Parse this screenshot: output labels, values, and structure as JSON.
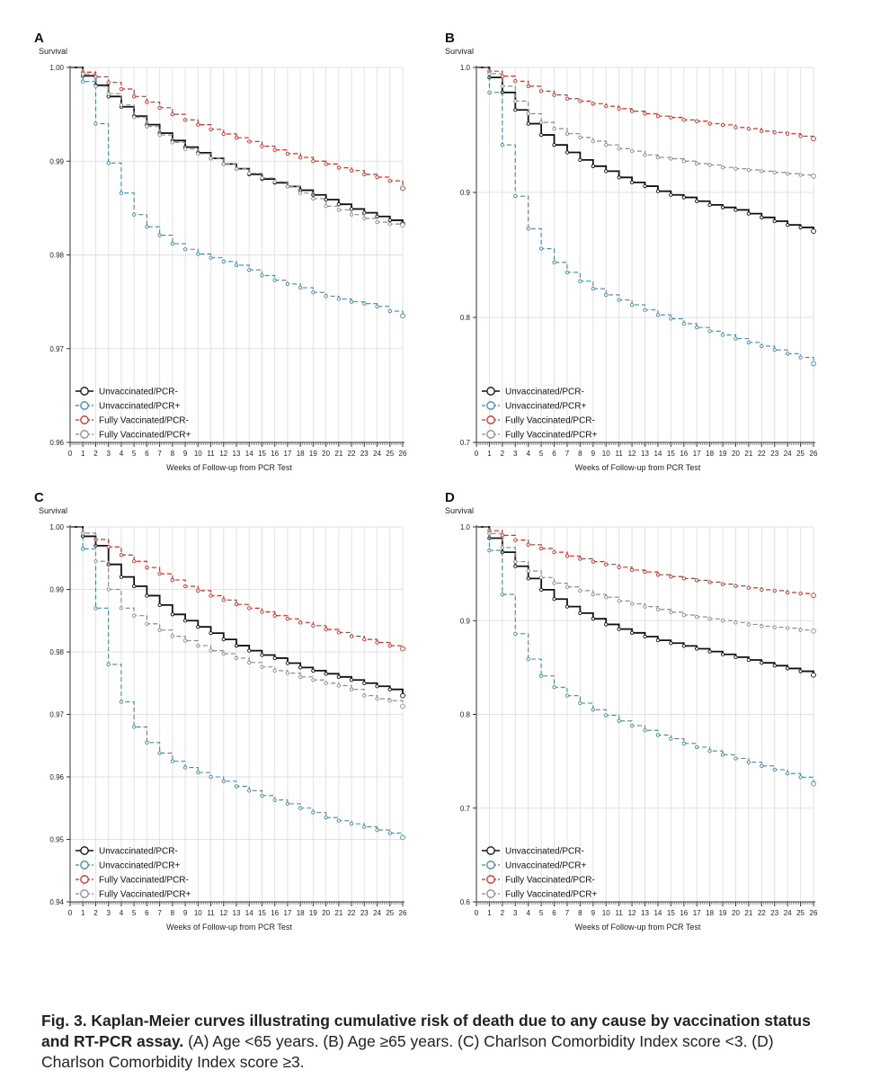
{
  "legend_labels": [
    "Unvaccinated/PCR-",
    "Unvaccinated/PCR+",
    "Fully Vaccinated/PCR-",
    "Fully Vaccinated/PCR+"
  ],
  "series_colors": [
    "#111111",
    "#3d8aa6",
    "#d62a22",
    "#8a8a8a"
  ],
  "caption": {
    "bold_part": "Fig. 3. Kaplan-Meier curves illustrating cumulative risk of death due to any cause by vaccination status and RT-PCR assay.",
    "rest": " (A) Age <65 years. (B) Age ≥65 years. (C) Charlson Comorbidity Index score <3. (D) Charlson Comorbidity Index score ≥3."
  },
  "chart_data": [
    {
      "type": "line",
      "panel": "A",
      "ylabel": "Survival",
      "xlabel": "Weeks of Follow-up from PCR Test",
      "ylim": [
        0.96,
        1.0
      ],
      "xlim": [
        0,
        26
      ],
      "yticks": [
        "1.00",
        "0.99",
        "0.98",
        "0.97",
        "0.96"
      ],
      "ytick_values": [
        1.0,
        0.99,
        0.98,
        0.97,
        0.96
      ],
      "xticks": [
        "0",
        "1",
        "2",
        "3",
        "4",
        "5",
        "6",
        "7",
        "8",
        "9",
        "10",
        "11",
        "12",
        "13",
        "14",
        "15",
        "16",
        "17",
        "18",
        "19",
        "20",
        "21",
        "22",
        "23",
        "24",
        "25",
        "26"
      ],
      "grid": true,
      "legend": "bottom-left",
      "x": [
        0,
        1,
        2,
        3,
        4,
        5,
        6,
        7,
        8,
        9,
        10,
        11,
        12,
        13,
        14,
        15,
        16,
        17,
        18,
        19,
        20,
        21,
        22,
        23,
        24,
        25,
        26
      ],
      "series": [
        {
          "name": "Unvaccinated/PCR-",
          "values": [
            1.0,
            0.9991,
            0.9981,
            0.9969,
            0.9958,
            0.9948,
            0.9939,
            0.993,
            0.9922,
            0.9915,
            0.9909,
            0.9903,
            0.9897,
            0.9892,
            0.9886,
            0.9881,
            0.9877,
            0.9873,
            0.9869,
            0.9864,
            0.9859,
            0.9854,
            0.9849,
            0.9845,
            0.9841,
            0.9837,
            0.9833
          ]
        },
        {
          "name": "Unvaccinated/PCR+",
          "values": [
            1.0,
            0.9985,
            0.994,
            0.9898,
            0.9866,
            0.9843,
            0.983,
            0.9821,
            0.9812,
            0.9806,
            0.9801,
            0.9797,
            0.9793,
            0.9789,
            0.9784,
            0.9778,
            0.9773,
            0.9769,
            0.9765,
            0.976,
            0.9756,
            0.9753,
            0.975,
            0.9748,
            0.9745,
            0.974,
            0.9735
          ]
        },
        {
          "name": "Fully Vaccinated/PCR-",
          "values": [
            1.0,
            0.9995,
            0.999,
            0.9984,
            0.9977,
            0.9969,
            0.9963,
            0.9957,
            0.995,
            0.9944,
            0.9939,
            0.9934,
            0.9929,
            0.9925,
            0.9921,
            0.9916,
            0.9912,
            0.9908,
            0.9904,
            0.99,
            0.9897,
            0.9893,
            0.989,
            0.9886,
            0.9883,
            0.9879,
            0.9871
          ]
        },
        {
          "name": "Fully Vaccinated/PCR+",
          "values": [
            1.0,
            0.9993,
            0.998,
            0.9972,
            0.996,
            0.9947,
            0.9937,
            0.9928,
            0.992,
            0.9913,
            0.9908,
            0.9903,
            0.9897,
            0.9892,
            0.9887,
            0.9882,
            0.9878,
            0.9873,
            0.9866,
            0.986,
            0.9852,
            0.9848,
            0.9843,
            0.9839,
            0.9835,
            0.9833,
            0.9832
          ]
        }
      ]
    },
    {
      "type": "line",
      "panel": "B",
      "ylabel": "Survival",
      "xlabel": "Weeks of Follow-up from PCR Test",
      "ylim": [
        0.7,
        1.0
      ],
      "xlim": [
        0,
        26
      ],
      "yticks": [
        "1.0",
        "0.9",
        "0.8",
        "0.7"
      ],
      "ytick_values": [
        1.0,
        0.9,
        0.8,
        0.7
      ],
      "xticks": [
        "0",
        "1",
        "2",
        "3",
        "4",
        "5",
        "6",
        "7",
        "8",
        "9",
        "10",
        "11",
        "12",
        "13",
        "14",
        "15",
        "16",
        "17",
        "18",
        "19",
        "20",
        "21",
        "22",
        "23",
        "24",
        "25",
        "26"
      ],
      "grid": true,
      "legend": "bottom-left",
      "x": [
        0,
        1,
        2,
        3,
        4,
        5,
        6,
        7,
        8,
        9,
        10,
        11,
        12,
        13,
        14,
        15,
        16,
        17,
        18,
        19,
        20,
        21,
        22,
        23,
        24,
        25,
        26
      ],
      "series": [
        {
          "name": "Unvaccinated/PCR-",
          "values": [
            1.0,
            0.992,
            0.98,
            0.966,
            0.955,
            0.946,
            0.938,
            0.932,
            0.926,
            0.921,
            0.917,
            0.912,
            0.908,
            0.905,
            0.901,
            0.898,
            0.896,
            0.893,
            0.89,
            0.888,
            0.886,
            0.883,
            0.88,
            0.877,
            0.874,
            0.872,
            0.869
          ]
        },
        {
          "name": "Unvaccinated/PCR+",
          "values": [
            1.0,
            0.98,
            0.938,
            0.897,
            0.871,
            0.855,
            0.844,
            0.836,
            0.829,
            0.823,
            0.818,
            0.814,
            0.81,
            0.806,
            0.802,
            0.799,
            0.795,
            0.792,
            0.789,
            0.786,
            0.783,
            0.78,
            0.777,
            0.774,
            0.771,
            0.768,
            0.763
          ]
        },
        {
          "name": "Fully Vaccinated/PCR-",
          "values": [
            1.0,
            0.997,
            0.993,
            0.989,
            0.985,
            0.981,
            0.978,
            0.975,
            0.973,
            0.971,
            0.969,
            0.967,
            0.965,
            0.963,
            0.961,
            0.96,
            0.958,
            0.957,
            0.955,
            0.954,
            0.952,
            0.951,
            0.949,
            0.948,
            0.947,
            0.945,
            0.943
          ]
        },
        {
          "name": "Fully Vaccinated/PCR+",
          "values": [
            1.0,
            0.995,
            0.985,
            0.973,
            0.963,
            0.956,
            0.951,
            0.947,
            0.944,
            0.941,
            0.938,
            0.935,
            0.933,
            0.93,
            0.928,
            0.927,
            0.925,
            0.923,
            0.922,
            0.92,
            0.919,
            0.918,
            0.917,
            0.916,
            0.915,
            0.914,
            0.913
          ]
        }
      ]
    },
    {
      "type": "line",
      "panel": "C",
      "ylabel": "Survival",
      "xlabel": "Weeks of Follow-up from PCR Test",
      "ylim": [
        0.94,
        1.0
      ],
      "xlim": [
        0,
        26
      ],
      "yticks": [
        "1.00",
        "0.99",
        "0.98",
        "0.97",
        "0.96",
        "0.95",
        "0.94"
      ],
      "ytick_values": [
        1.0,
        0.99,
        0.98,
        0.97,
        0.96,
        0.95,
        0.94
      ],
      "xticks": [
        "0",
        "1",
        "2",
        "3",
        "4",
        "5",
        "6",
        "7",
        "8",
        "9",
        "10",
        "11",
        "12",
        "13",
        "14",
        "15",
        "16",
        "17",
        "18",
        "19",
        "20",
        "21",
        "22",
        "23",
        "24",
        "25",
        "26"
      ],
      "grid": true,
      "legend": "bottom-left",
      "x": [
        0,
        1,
        2,
        3,
        4,
        5,
        6,
        7,
        8,
        9,
        10,
        11,
        12,
        13,
        14,
        15,
        16,
        17,
        18,
        19,
        20,
        21,
        22,
        23,
        24,
        25,
        26
      ],
      "series": [
        {
          "name": "Unvaccinated/PCR-",
          "values": [
            1.0,
            0.9985,
            0.997,
            0.994,
            0.992,
            0.9905,
            0.989,
            0.9875,
            0.986,
            0.985,
            0.984,
            0.983,
            0.982,
            0.981,
            0.9802,
            0.9795,
            0.979,
            0.9782,
            0.9775,
            0.977,
            0.9765,
            0.976,
            0.9755,
            0.975,
            0.9745,
            0.974,
            0.973
          ]
        },
        {
          "name": "Unvaccinated/PCR+",
          "values": [
            1.0,
            0.9965,
            0.987,
            0.978,
            0.972,
            0.968,
            0.9655,
            0.9638,
            0.9625,
            0.9615,
            0.9607,
            0.96,
            0.9593,
            0.9585,
            0.9578,
            0.957,
            0.9563,
            0.9557,
            0.955,
            0.9543,
            0.9535,
            0.953,
            0.9525,
            0.952,
            0.9515,
            0.951,
            0.9503
          ]
        },
        {
          "name": "Fully Vaccinated/PCR-",
          "values": [
            1.0,
            0.999,
            0.998,
            0.9968,
            0.9955,
            0.9945,
            0.9935,
            0.9925,
            0.9915,
            0.9905,
            0.9898,
            0.989,
            0.9883,
            0.9876,
            0.987,
            0.9864,
            0.9858,
            0.9853,
            0.9847,
            0.9842,
            0.9836,
            0.9831,
            0.9825,
            0.982,
            0.9815,
            0.981,
            0.9805
          ]
        },
        {
          "name": "Fully Vaccinated/PCR+",
          "values": [
            1.0,
            0.999,
            0.9945,
            0.99,
            0.987,
            0.9858,
            0.9845,
            0.9835,
            0.9825,
            0.9818,
            0.981,
            0.9802,
            0.9797,
            0.979,
            0.9783,
            0.9776,
            0.977,
            0.9766,
            0.976,
            0.9755,
            0.975,
            0.9746,
            0.974,
            0.973,
            0.9725,
            0.9722,
            0.9713
          ]
        }
      ]
    },
    {
      "type": "line",
      "panel": "D",
      "ylabel": "Survival",
      "xlabel": "Weeks of Follow-up from PCR Test",
      "ylim": [
        0.6,
        1.0
      ],
      "xlim": [
        0,
        26
      ],
      "yticks": [
        "1.0",
        "0.9",
        "0.8",
        "0.7",
        "0.6"
      ],
      "ytick_values": [
        1.0,
        0.9,
        0.8,
        0.7,
        0.6
      ],
      "xticks": [
        "0",
        "1",
        "2",
        "3",
        "4",
        "5",
        "6",
        "7",
        "8",
        "9",
        "10",
        "11",
        "12",
        "13",
        "14",
        "15",
        "16",
        "17",
        "18",
        "19",
        "20",
        "21",
        "22",
        "23",
        "24",
        "25",
        "26"
      ],
      "grid": true,
      "legend": "bottom-left",
      "x": [
        0,
        1,
        2,
        3,
        4,
        5,
        6,
        7,
        8,
        9,
        10,
        11,
        12,
        13,
        14,
        15,
        16,
        17,
        18,
        19,
        20,
        21,
        22,
        23,
        24,
        25,
        26
      ],
      "series": [
        {
          "name": "Unvaccinated/PCR-",
          "values": [
            1.0,
            0.988,
            0.973,
            0.958,
            0.945,
            0.933,
            0.923,
            0.915,
            0.908,
            0.902,
            0.896,
            0.891,
            0.887,
            0.883,
            0.879,
            0.876,
            0.873,
            0.87,
            0.867,
            0.864,
            0.861,
            0.858,
            0.855,
            0.852,
            0.849,
            0.846,
            0.842
          ]
        },
        {
          "name": "Unvaccinated/PCR+",
          "values": [
            1.0,
            0.975,
            0.928,
            0.886,
            0.859,
            0.841,
            0.829,
            0.82,
            0.812,
            0.805,
            0.799,
            0.793,
            0.788,
            0.783,
            0.778,
            0.774,
            0.769,
            0.765,
            0.761,
            0.757,
            0.753,
            0.749,
            0.745,
            0.741,
            0.737,
            0.733,
            0.726
          ]
        },
        {
          "name": "Fully Vaccinated/PCR-",
          "values": [
            1.0,
            0.996,
            0.991,
            0.986,
            0.981,
            0.977,
            0.973,
            0.969,
            0.966,
            0.963,
            0.96,
            0.957,
            0.954,
            0.952,
            0.949,
            0.947,
            0.945,
            0.943,
            0.941,
            0.939,
            0.937,
            0.935,
            0.933,
            0.932,
            0.93,
            0.929,
            0.927
          ]
        },
        {
          "name": "Fully Vaccinated/PCR+",
          "values": [
            1.0,
            0.993,
            0.978,
            0.963,
            0.953,
            0.946,
            0.94,
            0.936,
            0.932,
            0.928,
            0.925,
            0.921,
            0.918,
            0.915,
            0.912,
            0.909,
            0.906,
            0.904,
            0.902,
            0.9,
            0.898,
            0.896,
            0.894,
            0.893,
            0.892,
            0.89,
            0.889
          ]
        }
      ]
    }
  ]
}
